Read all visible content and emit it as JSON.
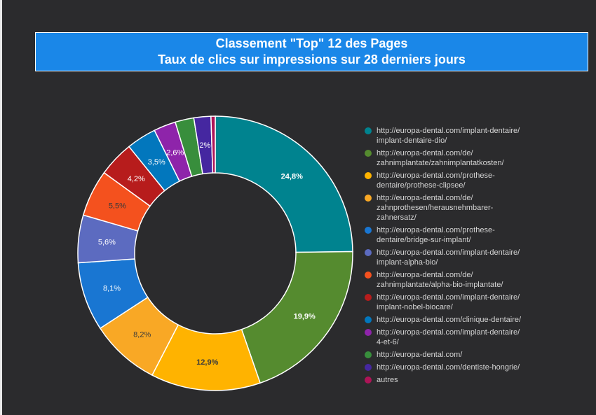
{
  "header": {
    "title_line1": "Classement \"Top\" 12 des Pages",
    "title_line2": "Taux de clics sur impressions sur 28 derniers jours"
  },
  "chart_data": {
    "type": "pie",
    "title": "Classement \"Top\" 12 des Pages\nTaux de clics sur impressions sur 28 derniers jours",
    "legend_position": "right",
    "series": [
      {
        "name": "http://europa-dental.com/implant-dentaire/\nimplant-dentaire-dio/",
        "value": 24.8,
        "label": "24,8%",
        "color": "#00838f"
      },
      {
        "name": "http://europa-dental.com/de/\nzahnimplantate/zahnimplantatkosten/",
        "value": 19.9,
        "label": "19,9%",
        "color": "#558b2f"
      },
      {
        "name": "http://europa-dental.com/prothese-\ndentaire/prothese-clipsee/",
        "value": 12.9,
        "label": "12,9%",
        "color": "#ffb300"
      },
      {
        "name": "http://europa-dental.com/de/\nzahnprothesen/herausnehmbarer-\nzahnersatz/",
        "value": 8.2,
        "label": "8,2%",
        "color": "#f9a825"
      },
      {
        "name": "http://europa-dental.com/prothese-\ndentaire/bridge-sur-implant/",
        "value": 8.1,
        "label": "8,1%",
        "color": "#1976d2"
      },
      {
        "name": "http://europa-dental.com/implant-dentaire/\nimplant-alpha-bio/",
        "value": 5.6,
        "label": "5,6%",
        "color": "#5c6bc0"
      },
      {
        "name": "http://europa-dental.com/de/\nzahnimplantate/alpha-bio-implantate/",
        "value": 5.5,
        "label": "5,5%",
        "color": "#f4511e"
      },
      {
        "name": "http://europa-dental.com/implant-dentaire/\nimplant-nobel-biocare/",
        "value": 4.2,
        "label": "4,2%",
        "color": "#b71c1c"
      },
      {
        "name": "http://europa-dental.com/clinique-dentaire/",
        "value": 3.5,
        "label": "3,5%",
        "color": "#0277bd"
      },
      {
        "name": "http://europa-dental.com/implant-dentaire/\n4-et-6/",
        "value": 2.6,
        "label": "2,6%",
        "color": "#8e24aa"
      },
      {
        "name": "http://europa-dental.com/",
        "value": 2.2,
        "label": "",
        "color": "#388e3c"
      },
      {
        "name": "http://europa-dental.com/dentiste-hongrie/",
        "value": 2.0,
        "label": "2%",
        "color": "#4527a0"
      },
      {
        "name": "autres",
        "value": 0.5,
        "label": "",
        "color": "#ad1457"
      }
    ],
    "label_colors": {
      "light": "#ffffff",
      "dark": "#3a3a3a"
    }
  }
}
